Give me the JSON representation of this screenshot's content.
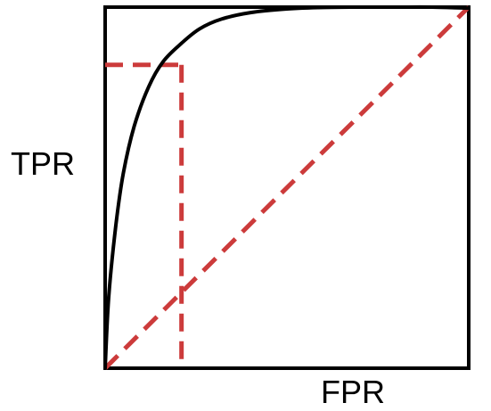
{
  "chart_data": {
    "type": "line",
    "xlabel": "FPR",
    "ylabel": "TPR",
    "xlim": [
      0,
      1
    ],
    "ylim": [
      0,
      1
    ],
    "grid": false,
    "legend": "none",
    "series": [
      {
        "style": "solid",
        "color": "#000000",
        "x": [
          0,
          0.01,
          0.03,
          0.05,
          0.08,
          0.12,
          0.16,
          0.21,
          0.26,
          0.32,
          0.4,
          0.5,
          0.6,
          0.7,
          0.8,
          0.9,
          1.0
        ],
        "y": [
          0,
          0.2,
          0.4,
          0.54,
          0.67,
          0.78,
          0.85,
          0.9,
          0.94,
          0.967,
          0.985,
          0.995,
          0.999,
          1.0,
          1.0,
          1.0,
          0.997
        ]
      },
      {
        "style": "dashed",
        "color": "#cc3b3b",
        "x": [
          0,
          1
        ],
        "y": [
          0,
          1
        ]
      }
    ],
    "reference_point": {
      "x": 0.21,
      "y": 0.84,
      "style": "dashed",
      "color": "#cc3b3b"
    }
  }
}
